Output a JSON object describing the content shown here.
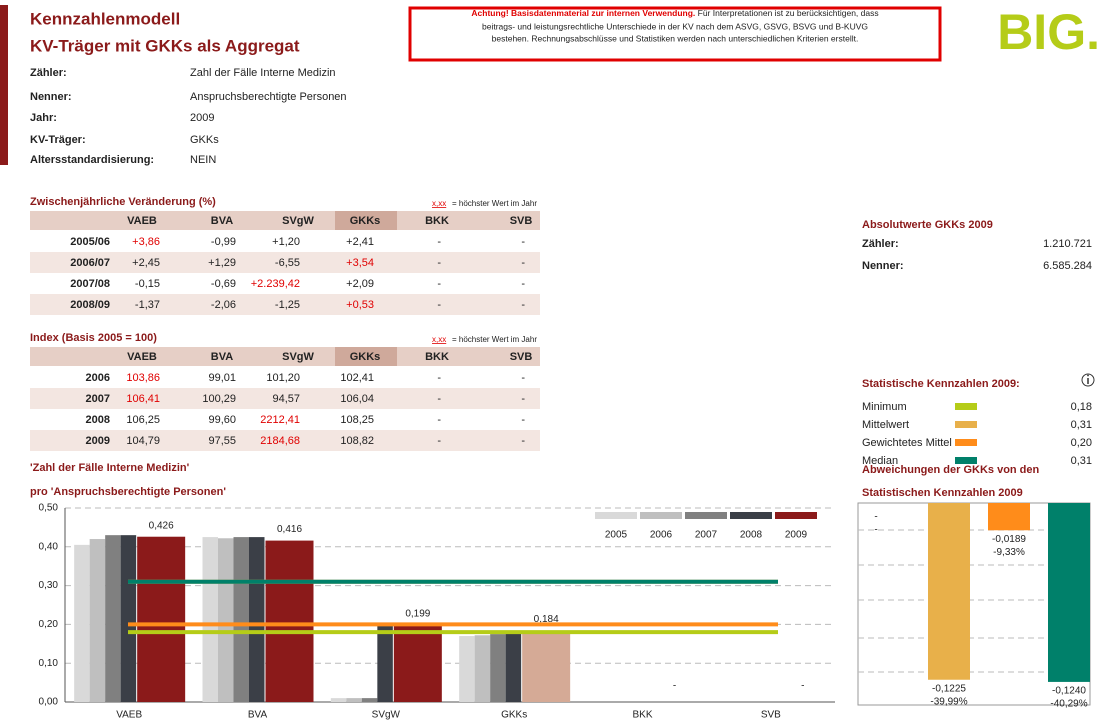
{
  "header": {
    "title": "Kennzahlenmodell",
    "subtitle": "KV-Träger mit GKKs als Aggregat",
    "notice_bold": "Achtung! Basisdatenmaterial zur internen Verwendung.",
    "notice_lines": [
      "Für Interpretationen ist zu berücksichtigen, dass",
      "beitrags- und leistungsrechtliche Unterschiede in der KV nach dem ASVG, GSVG, BSVG und B-KUVG",
      "bestehen. Rechnungsabschlüsse und Statistiken werden nach unterschiedlichen Kriterien erstellt."
    ],
    "logo": "BIG."
  },
  "info": [
    {
      "label": "Zähler:",
      "value": "Zahl der Fälle Interne Medizin"
    },
    {
      "label": "Nenner:",
      "value": "Anspruchsberechtigte Personen"
    },
    {
      "label": "Jahr:",
      "value": "2009"
    },
    {
      "label": "KV-Träger:",
      "value": "GKKs"
    },
    {
      "label": "Altersstandardisierung:",
      "value": "NEIN"
    }
  ],
  "change_table": {
    "title": "Zwischenjährliche Veränderung (%)",
    "legend_marker": "x,xx",
    "legend_text": "= höchster Wert im Jahr",
    "columns": [
      "VAEB",
      "BVA",
      "SVgW",
      "GKKs",
      "BKK",
      "SVB"
    ],
    "rows": [
      {
        "label": "2005/06",
        "cells": [
          "+3,86",
          "-0,99",
          "+1,20",
          "+2,41",
          "-",
          "-"
        ],
        "max_col": 0
      },
      {
        "label": "2006/07",
        "cells": [
          "+2,45",
          "+1,29",
          "-6,55",
          "+3,54",
          "-",
          "-"
        ],
        "max_col": 3
      },
      {
        "label": "2007/08",
        "cells": [
          "-0,15",
          "-0,69",
          "+2.239,42",
          "+2,09",
          "-",
          "-"
        ],
        "max_col": 2
      },
      {
        "label": "2008/09",
        "cells": [
          "-1,37",
          "-2,06",
          "-1,25",
          "+0,53",
          "-",
          "-"
        ],
        "max_col": 3
      }
    ]
  },
  "index_table": {
    "title": "Index (Basis 2005 = 100)",
    "legend_marker": "x,xx",
    "legend_text": "= höchster Wert im Jahr",
    "columns": [
      "VAEB",
      "BVA",
      "SVgW",
      "GKKs",
      "BKK",
      "SVB"
    ],
    "rows": [
      {
        "label": "2006",
        "cells": [
          "103,86",
          "99,01",
          "101,20",
          "102,41",
          "-",
          "-"
        ],
        "max_col": 0
      },
      {
        "label": "2007",
        "cells": [
          "106,41",
          "100,29",
          "94,57",
          "106,04",
          "-",
          "-"
        ],
        "max_col": 0
      },
      {
        "label": "2008",
        "cells": [
          "106,25",
          "99,60",
          "2212,41",
          "108,25",
          "-",
          "-"
        ],
        "max_col": 2
      },
      {
        "label": "2009",
        "cells": [
          "104,79",
          "97,55",
          "2184,68",
          "108,82",
          "-",
          "-"
        ],
        "max_col": 2
      }
    ]
  },
  "absolute": {
    "title": "Absolutwerte GKKs 2009",
    "rows": [
      {
        "label": "Zähler:",
        "value": "1.210.721"
      },
      {
        "label": "Nenner:",
        "value": "6.585.284"
      }
    ]
  },
  "stats": {
    "title": "Statistische Kennzahlen 2009:",
    "rows": [
      {
        "label": "Minimum",
        "color": "#b5cc18",
        "value": 0.18,
        "value_label": "0,18"
      },
      {
        "label": "Mittelwert",
        "color": "#e8b04a",
        "value": 0.31,
        "value_label": "0,31"
      },
      {
        "label": "Gewichtetes Mittel",
        "color": "#ff8c1a",
        "value": 0.2,
        "value_label": "0,20"
      },
      {
        "label": "Median",
        "color": "#00806a",
        "value": 0.31,
        "value_label": "0,31"
      }
    ]
  },
  "chart_data": [
    {
      "type": "bar",
      "title": "'Zahl der Fälle Interne Medizin'",
      "subtitle": "pro 'Anspruchsberechtigte Personen'",
      "categories": [
        "VAEB",
        "BVA",
        "SVgW",
        "GKKs",
        "BKK",
        "SVB"
      ],
      "series": [
        {
          "name": "2005",
          "color": "#d9d9d9",
          "values": [
            0.405,
            0.425,
            0.01,
            0.17,
            null,
            null
          ]
        },
        {
          "name": "2006",
          "color": "#bfbfbf",
          "values": [
            0.42,
            0.422,
            0.01,
            0.172,
            null,
            null
          ]
        },
        {
          "name": "2007",
          "color": "#808080",
          "values": [
            0.43,
            0.425,
            0.01,
            0.175,
            null,
            null
          ]
        },
        {
          "name": "2008",
          "color": "#3b3f47",
          "values": [
            0.43,
            0.425,
            0.2,
            0.18,
            null,
            null
          ]
        },
        {
          "name": "2009",
          "color": "#8b1a1a",
          "colors": [
            "#8b1a1a",
            "#8b1a1a",
            "#8b1a1a",
            "#d5aa96",
            "#8b1a1a",
            "#8b1a1a"
          ],
          "values": [
            0.426,
            0.416,
            0.199,
            0.184,
            null,
            null
          ],
          "value_labels": [
            "0,426",
            "0,416",
            "0,199",
            "0,184",
            "-",
            "-"
          ]
        }
      ],
      "ylim": [
        0,
        0.5
      ],
      "yticks": [
        {
          "value": 0,
          "label": "0,00"
        },
        {
          "value": 0.1,
          "label": "0,10"
        },
        {
          "value": 0.2,
          "label": "0,20"
        },
        {
          "value": 0.3,
          "label": "0,30"
        },
        {
          "value": 0.4,
          "label": "0,40"
        },
        {
          "value": 0.5,
          "label": "0,50"
        }
      ],
      "grid": true,
      "legend": "top-right"
    },
    {
      "type": "bar",
      "title": "Abweichungen der GKKs von den",
      "subtitle": "Statistischen Kennzahlen 2009",
      "values": [
        null,
        -0.1225,
        -0.0189,
        -0.124
      ],
      "value_labels": [
        "-",
        "-0,1225",
        "-0,0189",
        "-0,1240"
      ],
      "pct_labels": [
        "-",
        "-39,99%",
        "-9,33%",
        "-40,29%"
      ],
      "ylim": [
        -0.14,
        0
      ]
    }
  ]
}
